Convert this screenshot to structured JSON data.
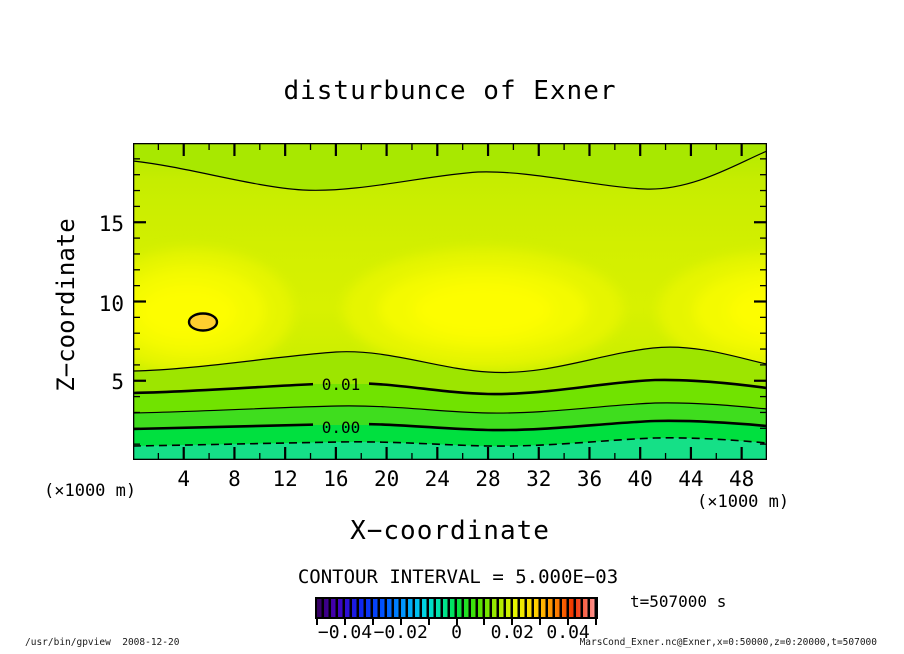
{
  "title": "disturbunce of Exner",
  "axes": {
    "x_label": "X−coordinate",
    "y_label": "Z−coordinate",
    "x_unit_left": "(×1000 m)",
    "x_unit_right": "(×1000 m)",
    "x_ticks": [
      "4",
      "8",
      "12",
      "16",
      "20",
      "24",
      "28",
      "32",
      "36",
      "40",
      "44",
      "48"
    ],
    "y_ticks": [
      "5",
      "10",
      "15"
    ]
  },
  "contour": {
    "interval_text": "CONTOUR INTERVAL = 5.000E−03",
    "labels": [
      "0.01",
      "0.00"
    ]
  },
  "colorbar": {
    "tick_labels": [
      "−0.04",
      "−0.02",
      "0",
      "0.02",
      "0.04"
    ]
  },
  "annotations": {
    "time": "t=507000 s",
    "footer_left": "/usr/bin/gpview  2008-12-20",
    "footer_right": "MarsCond_Exner.nc@Exner,x=0:50000,z=0:20000,t=507000"
  },
  "chart_data": {
    "type": "contour",
    "title": "disturbunce of Exner",
    "xlabel": "X-coordinate (x1000 m)",
    "ylabel": "Z-coordinate (x1000 m)",
    "x_range": [
      0,
      50
    ],
    "z_range": [
      0,
      20
    ],
    "x_major_tick_values": [
      4,
      8,
      12,
      16,
      20,
      24,
      28,
      32,
      36,
      40,
      44,
      48
    ],
    "z_major_tick_values": [
      5,
      10,
      15
    ],
    "axis_ticks": {
      "x_minor_step": 2,
      "x_major_step": 4,
      "z_minor_step": 1,
      "z_major_step": 5
    },
    "contour_interval": 0.005,
    "labeled_levels": [
      0.01,
      0.0
    ],
    "line_levels_drawn": [
      -0.005,
      0.0,
      0.005,
      0.01,
      0.015,
      0.03
    ],
    "negative_contour_style": "dashed",
    "field": "Exner function disturbance",
    "time_s": 507000,
    "approx_features": {
      "maxima": [
        {
          "x_km": 5.5,
          "z_km": 8.8,
          "value_approx": 0.03
        },
        {
          "x_km": 27,
          "z_km": 9.5,
          "value_approx": 0.028
        },
        {
          "x_km": 50,
          "z_km": 9.5,
          "value_approx": 0.028
        }
      ],
      "closed_contour_oval": {
        "x_km": 5.5,
        "z_km": 8.8,
        "level": 0.03
      },
      "level_heights_km_at_left_edge": {
        "-0.005": 1.0,
        "0.000": 2.0,
        "0.005": 3.0,
        "0.010": 4.2,
        "0.015_lower": 5.6,
        "0.015_upper": 18.8
      },
      "bumps_in_low_level_contours_at_x_km": [
        16,
        41
      ]
    },
    "colorbar": {
      "range": [
        -0.05,
        0.05
      ],
      "tick_label_values": [
        -0.04,
        -0.02,
        0,
        0.02,
        0.04
      ],
      "style": "striped rainbow"
    },
    "fill_colors_bottom_to_top": [
      "#15e087",
      "#00e03f",
      "#3fdd1e",
      "#71e300",
      "#9de500",
      "#cbee00",
      "#a8e800",
      "#fdfd00",
      "#ffce2e"
    ]
  }
}
